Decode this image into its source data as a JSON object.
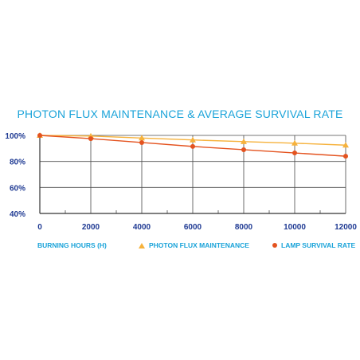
{
  "chart_data": {
    "type": "line",
    "title": "PHOTON FLUX MAINTENANCE & AVERAGE SURVIVAL RATE",
    "xlabel": "BURNING HOURS (H)",
    "ylabel": "",
    "x": [
      0,
      2000,
      4000,
      6000,
      8000,
      10000,
      12000
    ],
    "x_tick_labels": [
      "0",
      "2000",
      "4000",
      "6000",
      "8000",
      "10000",
      "12000"
    ],
    "y_tick_labels": [
      "40%",
      "60%",
      "80%",
      "100%"
    ],
    "xlim": [
      0,
      12000
    ],
    "ylim": [
      40,
      100
    ],
    "grid": "on",
    "legend_position": "bottom",
    "series": [
      {
        "name": "PHOTON FLUX MAINTENANCE",
        "marker": "triangle",
        "color": "#f6b23c",
        "values": [
          100,
          99.5,
          98,
          96.5,
          95.2,
          94,
          92.5
        ]
      },
      {
        "name": "LAMP SURVIVAL RATE",
        "marker": "circle",
        "color": "#e4531f",
        "values": [
          100,
          97.5,
          94.5,
          91.5,
          89,
          86.5,
          84
        ]
      }
    ],
    "colors": {
      "title": "#1aa3d9",
      "tick_labels": "#1f3a93",
      "grid": "#4a4a4a"
    }
  }
}
